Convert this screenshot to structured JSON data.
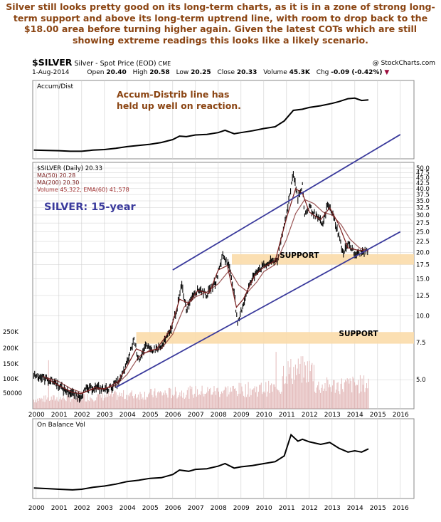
{
  "caption": "Silver still looks pretty good on its long-term charts, as it is in a zone of strong long-term support and above its long-term uptrend line, with room to drop back to the $18.00 area before turning higher again. Given the latest COTs which are still showing extreme readings this looks like a likely scenario.",
  "header": {
    "symbol": "$SILVER",
    "name": "Silver - Spot Price (EOD)",
    "exchange": "CME",
    "source": "@ StockCharts.com",
    "date": "1-Aug-2014",
    "open_label": "Open",
    "open": "20.40",
    "high_label": "High",
    "high": "20.58",
    "low_label": "Low",
    "low": "20.25",
    "close_label": "Close",
    "close": "20.33",
    "volume_label": "Volume",
    "volume": "45.3K",
    "chg_label": "Chg",
    "chg": "-0.09 (-0.42%)"
  },
  "colors": {
    "caption": "#8b4513",
    "annotation": "#8b4513",
    "trendline": "#3a3a9c",
    "support_band": "#fbdcaa",
    "price": "#000000",
    "ma50": "#7a1f1f",
    "ma200": "#7a1f1f",
    "volume": "#d9a0a0",
    "ema60": "#a03030",
    "grid": "#cfcfcf"
  },
  "chart_data": [
    {
      "type": "line",
      "panel": "top",
      "legend": [
        "Accum/Dist"
      ],
      "annotation": [
        "Accum-Distrib line has",
        "held up well on reaction."
      ],
      "x": [
        2000,
        2001,
        2002,
        2003,
        2004,
        2005,
        2006,
        2007,
        2008,
        2009,
        2010,
        2011,
        2012,
        2013,
        2014,
        2015,
        2016
      ],
      "series": [
        {
          "name": "Accum/Dist",
          "points": [
            [
              1999.9,
              0.1
            ],
            [
              2000.5,
              0.095
            ],
            [
              2001,
              0.09
            ],
            [
              2001.5,
              0.08
            ],
            [
              2002,
              0.08
            ],
            [
              2002.5,
              0.1
            ],
            [
              2003,
              0.11
            ],
            [
              2003.5,
              0.13
            ],
            [
              2004,
              0.16
            ],
            [
              2004.5,
              0.18
            ],
            [
              2005,
              0.2
            ],
            [
              2005.5,
              0.23
            ],
            [
              2006,
              0.28
            ],
            [
              2006.3,
              0.34
            ],
            [
              2006.6,
              0.33
            ],
            [
              2007,
              0.36
            ],
            [
              2007.5,
              0.37
            ],
            [
              2008,
              0.4
            ],
            [
              2008.3,
              0.44
            ],
            [
              2008.7,
              0.38
            ],
            [
              2009,
              0.4
            ],
            [
              2009.5,
              0.43
            ],
            [
              2010,
              0.47
            ],
            [
              2010.5,
              0.5
            ],
            [
              2010.9,
              0.6
            ],
            [
              2011.3,
              0.78
            ],
            [
              2011.7,
              0.8
            ],
            [
              2012,
              0.83
            ],
            [
              2012.5,
              0.86
            ],
            [
              2013,
              0.9
            ],
            [
              2013.3,
              0.93
            ],
            [
              2013.7,
              0.98
            ],
            [
              2014,
              0.99
            ],
            [
              2014.3,
              0.95
            ],
            [
              2014.6,
              0.96
            ]
          ]
        }
      ]
    },
    {
      "type": "line",
      "panel": "price",
      "log_scale": true,
      "title": "SILVER: 15-year",
      "legend": [
        "$SILVER (Daily) 20.33",
        "MA(50) 20.28",
        "MA(200) 20.30",
        "Volume 45,322, EMA(60) 41,578"
      ],
      "x": [
        2000,
        2001,
        2002,
        2003,
        2004,
        2005,
        2006,
        2007,
        2008,
        2009,
        2010,
        2011,
        2012,
        2013,
        2014,
        2015,
        2016
      ],
      "y_ticks": [
        50.0,
        47.5,
        45.0,
        42.5,
        40.0,
        37.5,
        35.0,
        32.5,
        30.0,
        27.5,
        25.0,
        22.5,
        20.0,
        17.5,
        15.0,
        12.5,
        10.0,
        7.5,
        5.0
      ],
      "ylim": [
        4.0,
        50.0
      ],
      "volume_ticks": [
        "250K",
        "200K",
        "150K",
        "100K",
        "50000"
      ],
      "support_labels": [
        "SUPPORT",
        "SUPPORT"
      ],
      "support_bands": [
        [
          17.5,
          19.6
        ],
        [
          7.4,
          8.4
        ]
      ],
      "series": [
        {
          "name": "$SILVER",
          "points": [
            [
              1999.9,
              5.3
            ],
            [
              2000.3,
              5.1
            ],
            [
              2000.8,
              4.9
            ],
            [
              2001.2,
              4.5
            ],
            [
              2001.6,
              4.3
            ],
            [
              2001.9,
              4.15
            ],
            [
              2002.2,
              4.5
            ],
            [
              2002.6,
              4.6
            ],
            [
              2003,
              4.5
            ],
            [
              2003.3,
              4.6
            ],
            [
              2003.7,
              5.0
            ],
            [
              2004,
              6.0
            ],
            [
              2004.3,
              7.8
            ],
            [
              2004.5,
              6.2
            ],
            [
              2004.8,
              7.2
            ],
            [
              2005,
              6.9
            ],
            [
              2005.5,
              7.1
            ],
            [
              2005.9,
              8.5
            ],
            [
              2006.2,
              11.0
            ],
            [
              2006.4,
              14.0
            ],
            [
              2006.6,
              10.8
            ],
            [
              2006.9,
              12.8
            ],
            [
              2007.2,
              13.4
            ],
            [
              2007.5,
              12.6
            ],
            [
              2007.9,
              14.6
            ],
            [
              2008.2,
              19.5
            ],
            [
              2008.5,
              17.0
            ],
            [
              2008.7,
              13.0
            ],
            [
              2008.85,
              9.0
            ],
            [
              2009,
              10.5
            ],
            [
              2009.3,
              13.5
            ],
            [
              2009.7,
              16.5
            ],
            [
              2010,
              17.2
            ],
            [
              2010.3,
              18.0
            ],
            [
              2010.6,
              18.5
            ],
            [
              2010.9,
              27.0
            ],
            [
              2011.1,
              35.0
            ],
            [
              2011.3,
              48.0
            ],
            [
              2011.5,
              36.0
            ],
            [
              2011.7,
              41.0
            ],
            [
              2011.8,
              30.0
            ],
            [
              2012,
              33.0
            ],
            [
              2012.3,
              29.5
            ],
            [
              2012.6,
              27.0
            ],
            [
              2012.8,
              33.5
            ],
            [
              2013,
              31.0
            ],
            [
              2013.3,
              24.0
            ],
            [
              2013.5,
              19.5
            ],
            [
              2013.7,
              22.5
            ],
            [
              2014,
              19.5
            ],
            [
              2014.3,
              20.0
            ],
            [
              2014.6,
              20.3
            ]
          ]
        },
        {
          "name": "MA(200)",
          "points": [
            [
              2000.5,
              5.1
            ],
            [
              2001,
              4.9
            ],
            [
              2001.5,
              4.55
            ],
            [
              2002,
              4.35
            ],
            [
              2002.5,
              4.5
            ],
            [
              2003,
              4.55
            ],
            [
              2003.5,
              4.7
            ],
            [
              2004,
              5.3
            ],
            [
              2004.5,
              6.4
            ],
            [
              2005,
              6.9
            ],
            [
              2005.5,
              7.0
            ],
            [
              2006,
              8.2
            ],
            [
              2006.5,
              11.0
            ],
            [
              2007,
              12.3
            ],
            [
              2007.5,
              13.0
            ],
            [
              2008,
              14.2
            ],
            [
              2008.5,
              16.5
            ],
            [
              2008.9,
              14.0
            ],
            [
              2009.3,
              13.0
            ],
            [
              2009.7,
              14.5
            ],
            [
              2010,
              16.2
            ],
            [
              2010.5,
              17.5
            ],
            [
              2011,
              23.0
            ],
            [
              2011.4,
              30.5
            ],
            [
              2011.8,
              35.5
            ],
            [
              2012.2,
              34.0
            ],
            [
              2012.6,
              31.0
            ],
            [
              2013,
              30.0
            ],
            [
              2013.4,
              27.0
            ],
            [
              2013.8,
              23.0
            ],
            [
              2014.2,
              21.0
            ],
            [
              2014.6,
              20.3
            ]
          ]
        },
        {
          "name": "MA(50)",
          "points": [
            [
              2000.3,
              5.2
            ],
            [
              2001,
              4.7
            ],
            [
              2001.6,
              4.35
            ],
            [
              2002,
              4.3
            ],
            [
              2002.6,
              4.6
            ],
            [
              2003,
              4.5
            ],
            [
              2003.6,
              4.9
            ],
            [
              2004,
              5.8
            ],
            [
              2004.4,
              7.0
            ],
            [
              2004.8,
              6.7
            ],
            [
              2005.3,
              7.0
            ],
            [
              2005.9,
              8.6
            ],
            [
              2006.3,
              12.0
            ],
            [
              2006.7,
              11.5
            ],
            [
              2007.1,
              13.2
            ],
            [
              2007.6,
              12.8
            ],
            [
              2008,
              16.5
            ],
            [
              2008.4,
              17.3
            ],
            [
              2008.8,
              11.0
            ],
            [
              2009.1,
              12.0
            ],
            [
              2009.6,
              15.5
            ],
            [
              2010,
              17.0
            ],
            [
              2010.5,
              18.2
            ],
            [
              2011,
              29.0
            ],
            [
              2011.4,
              40.0
            ],
            [
              2011.7,
              38.0
            ],
            [
              2012,
              31.0
            ],
            [
              2012.5,
              28.5
            ],
            [
              2012.9,
              32.5
            ],
            [
              2013.3,
              27.0
            ],
            [
              2013.7,
              21.0
            ],
            [
              2014.1,
              20.5
            ],
            [
              2014.6,
              20.28
            ]
          ]
        },
        {
          "name": "Trend lines",
          "points": [
            [
              2003.5,
              4.6
            ],
            [
              2016.0,
              25.0
            ],
            [
              2006.0,
              16.5
            ],
            [
              2016.0,
              72.0
            ]
          ]
        }
      ]
    },
    {
      "type": "line",
      "panel": "bottom",
      "legend": [
        "On Balance Vol"
      ],
      "x": [
        2000,
        2001,
        2002,
        2003,
        2004,
        2005,
        2006,
        2007,
        2008,
        2009,
        2010,
        2011,
        2012,
        2013,
        2014,
        2015,
        2016
      ],
      "series": [
        {
          "name": "On Balance Vol",
          "points": [
            [
              1999.9,
              0.12
            ],
            [
              2000.5,
              0.11
            ],
            [
              2001,
              0.1
            ],
            [
              2001.6,
              0.09
            ],
            [
              2002,
              0.1
            ],
            [
              2002.5,
              0.13
            ],
            [
              2003,
              0.15
            ],
            [
              2003.5,
              0.18
            ],
            [
              2004,
              0.22
            ],
            [
              2004.5,
              0.24
            ],
            [
              2005,
              0.27
            ],
            [
              2005.5,
              0.28
            ],
            [
              2006,
              0.33
            ],
            [
              2006.3,
              0.4
            ],
            [
              2006.7,
              0.38
            ],
            [
              2007,
              0.41
            ],
            [
              2007.5,
              0.42
            ],
            [
              2008,
              0.46
            ],
            [
              2008.3,
              0.5
            ],
            [
              2008.7,
              0.43
            ],
            [
              2009,
              0.45
            ],
            [
              2009.5,
              0.47
            ],
            [
              2010,
              0.5
            ],
            [
              2010.5,
              0.53
            ],
            [
              2010.9,
              0.62
            ],
            [
              2011.2,
              0.95
            ],
            [
              2011.5,
              0.85
            ],
            [
              2011.7,
              0.88
            ],
            [
              2012,
              0.84
            ],
            [
              2012.5,
              0.8
            ],
            [
              2012.9,
              0.83
            ],
            [
              2013.3,
              0.74
            ],
            [
              2013.7,
              0.68
            ],
            [
              2014,
              0.7
            ],
            [
              2014.3,
              0.68
            ],
            [
              2014.6,
              0.73
            ]
          ]
        }
      ]
    }
  ]
}
